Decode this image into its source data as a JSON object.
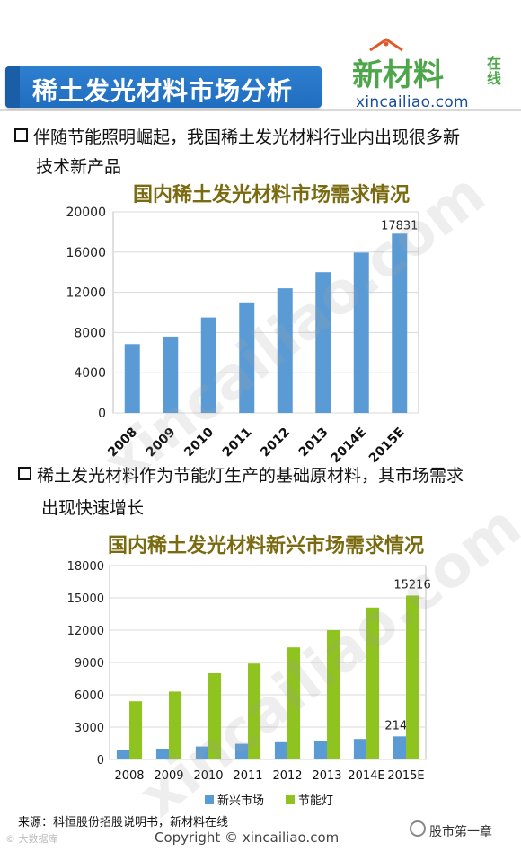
{
  "header": {
    "title": "稀土发光材料市场分析",
    "logo_main": "新材料",
    "logo_side": "在线",
    "logo_url": "xincailiao.com"
  },
  "bullets": [
    {
      "line1": "伴随节能照明崛起，我国稀土发光材料行业内出现很多新",
      "line2": "技术新产品"
    },
    {
      "line1": "稀土发光材料作为节能灯生产的基础原材料，其市场需求",
      "line2": "出现快速增长"
    }
  ],
  "watermark": "xincailiao.com",
  "chart_data": [
    {
      "type": "bar",
      "title": "国内稀土发光材料市场需求情况",
      "categories": [
        "2008",
        "2009",
        "2010",
        "2011",
        "2012",
        "2013",
        "2014E",
        "2015E"
      ],
      "values": [
        6850,
        7600,
        9500,
        11000,
        12400,
        14000,
        15950,
        17831
      ],
      "data_labels": {
        "2015E": "17831"
      },
      "yticks": [
        "0",
        "4000",
        "8000",
        "12000",
        "16000",
        "20000"
      ],
      "ylim": [
        0,
        20000
      ],
      "grid": true,
      "colors": {
        "bar": "#5b9bd5"
      }
    },
    {
      "type": "bar",
      "title": "国内稀土发光材料新兴市场需求情况",
      "categories": [
        "2008",
        "2009",
        "2010",
        "2011",
        "2012",
        "2013",
        "2014E",
        "2015E"
      ],
      "series": [
        {
          "name": "新兴市场",
          "values": [
            900,
            1000,
            1200,
            1450,
            1600,
            1750,
            1900,
            2140
          ],
          "color": "#5b9bd5"
        },
        {
          "name": "节能灯",
          "values": [
            5400,
            6300,
            8000,
            8900,
            10400,
            12000,
            14100,
            15216
          ],
          "color": "#8fc31f"
        }
      ],
      "data_labels": {
        "新兴市场 2015E": "2140",
        "节能灯 2015E": "15216"
      },
      "yticks": [
        "0",
        "3000",
        "6000",
        "9000",
        "12000",
        "15000",
        "18000"
      ],
      "ylim": [
        0,
        18000
      ],
      "grid": true,
      "legend": "bottom"
    }
  ],
  "footer": {
    "source": "来源：科恒股份招股说明书，新材料在线",
    "copyright": "Copyright © xincailiao.com",
    "brand": "股市第一章",
    "corner": "© 大数据库"
  }
}
